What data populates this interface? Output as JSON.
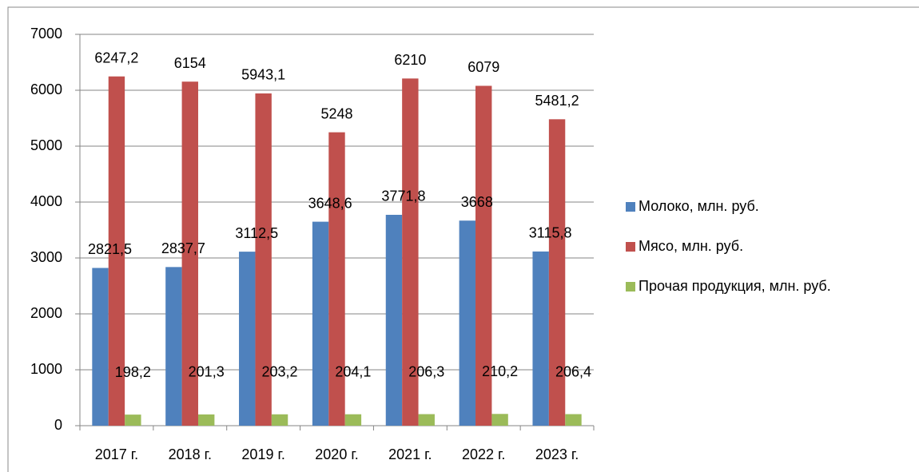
{
  "chart_data": {
    "type": "bar",
    "categories": [
      "2017 г.",
      "2018 г.",
      "2019 г.",
      "2020 г.",
      "2021 г.",
      "2022 г.",
      "2023 г."
    ],
    "series": [
      {
        "name": "Молоко, млн. руб.",
        "color": "#4f81bd",
        "values": [
          2821.5,
          2837.7,
          3112.5,
          3648.6,
          3771.8,
          3668,
          3115.8
        ],
        "value_labels": [
          "2821,5",
          "2837,7",
          "3112,5",
          "3648,6",
          "3771,8",
          "3668",
          "3115,8"
        ]
      },
      {
        "name": "Мясо, млн. руб.",
        "color": "#c0504d",
        "values": [
          6247.2,
          6154,
          5943.1,
          5248,
          6210,
          6079,
          5481.2
        ],
        "value_labels": [
          "6247,2",
          "6154",
          "5943,1",
          "5248",
          "6210",
          "6079",
          "5481,2"
        ]
      },
      {
        "name": "Прочая продукция, млн. руб.",
        "color": "#9bbb59",
        "values": [
          198.2,
          201.3,
          203.2,
          204.1,
          206.3,
          210.2,
          206.4
        ],
        "value_labels": [
          "198,2",
          "201,3",
          "203,2",
          "204,1",
          "206,3",
          "210,2",
          "206,4"
        ]
      }
    ],
    "ylim": [
      0,
      7000
    ],
    "yticks": [
      0,
      1000,
      2000,
      3000,
      4000,
      5000,
      6000,
      7000
    ],
    "grid": true,
    "legend": "right"
  }
}
